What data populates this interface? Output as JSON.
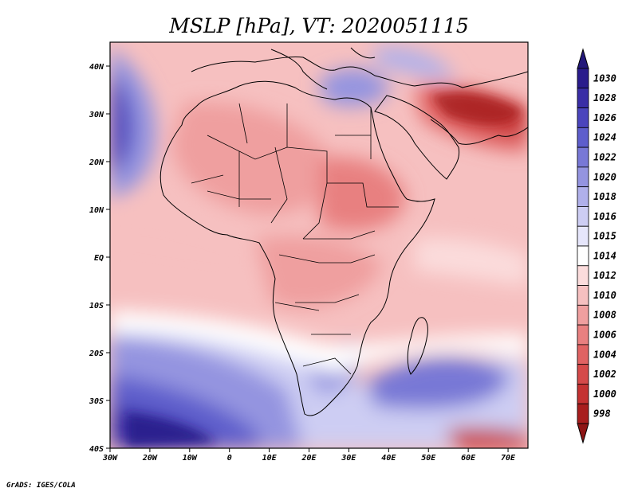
{
  "title": "MSLP [hPa], VT: 2020051115",
  "credit": "GrADS: IGES/COLA",
  "map": {
    "lon_range": [
      -30,
      75
    ],
    "lat_range": [
      -40,
      45
    ],
    "x_ticks": [
      {
        "lon": -30,
        "label": "30W"
      },
      {
        "lon": -20,
        "label": "20W"
      },
      {
        "lon": -10,
        "label": "10W"
      },
      {
        "lon": 0,
        "label": "0"
      },
      {
        "lon": 10,
        "label": "10E"
      },
      {
        "lon": 20,
        "label": "20E"
      },
      {
        "lon": 30,
        "label": "30E"
      },
      {
        "lon": 40,
        "label": "40E"
      },
      {
        "lon": 50,
        "label": "50E"
      },
      {
        "lon": 60,
        "label": "60E"
      },
      {
        "lon": 70,
        "label": "70E"
      }
    ],
    "y_ticks": [
      {
        "lat": 40,
        "label": "40N"
      },
      {
        "lat": 30,
        "label": "30N"
      },
      {
        "lat": 20,
        "label": "20N"
      },
      {
        "lat": 10,
        "label": "10N"
      },
      {
        "lat": 0,
        "label": "EQ"
      },
      {
        "lat": -10,
        "label": "10S"
      },
      {
        "lat": -20,
        "label": "20S"
      },
      {
        "lat": -30,
        "label": "30S"
      },
      {
        "lat": -40,
        "label": "40S"
      }
    ]
  },
  "colorbar": [
    {
      "label": "1030",
      "color": "#2a1c8c"
    },
    {
      "label": "1028",
      "color": "#3a2ea6"
    },
    {
      "label": "1026",
      "color": "#4b45bd"
    },
    {
      "label": "1024",
      "color": "#5e5ecc"
    },
    {
      "label": "1022",
      "color": "#7878d6"
    },
    {
      "label": "1020",
      "color": "#9494e0"
    },
    {
      "label": "1018",
      "color": "#b0b0ea"
    },
    {
      "label": "1016",
      "color": "#cdcdf3"
    },
    {
      "label": "1015",
      "color": "#e6e6fb"
    },
    {
      "label": "1014",
      "color": "#ffffff"
    },
    {
      "label": "1012",
      "color": "#fbdcdc"
    },
    {
      "label": "1010",
      "color": "#f6c0c0"
    },
    {
      "label": "1008",
      "color": "#ef9f9f"
    },
    {
      "label": "1006",
      "color": "#e88080"
    },
    {
      "label": "1004",
      "color": "#e06363"
    },
    {
      "label": "1002",
      "color": "#d54a4a"
    },
    {
      "label": "1000",
      "color": "#c43232"
    },
    {
      "label": "998",
      "color": "#a81e1e"
    }
  ],
  "colorbar_top_arrow": "#23187a",
  "colorbar_bottom_arrow": "#8e1515"
}
